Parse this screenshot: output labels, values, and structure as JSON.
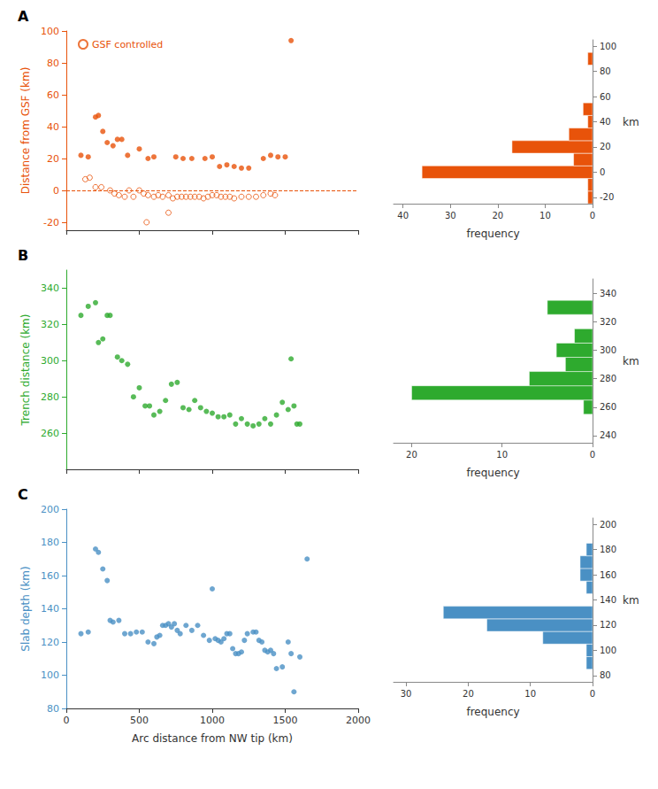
{
  "chart_data": [
    {
      "type": "scatter",
      "title": "A",
      "color": "#E8530A",
      "series": [
        {
          "color": "#E8530A",
          "marker": "circle",
          "x": [
            100,
            150,
            200,
            220,
            250,
            280,
            320,
            350,
            380,
            420,
            500,
            560,
            600,
            750,
            800,
            860,
            950,
            1000,
            1050,
            1100,
            1150,
            1200,
            1250,
            1350,
            1400,
            1450,
            1500,
            1540
          ],
          "values": [
            22,
            21,
            46,
            47,
            37,
            30,
            28,
            32,
            32,
            22,
            26,
            20,
            21,
            21,
            20,
            20,
            20,
            21,
            15,
            16,
            15,
            14,
            14,
            20,
            22,
            21,
            21,
            94
          ]
        },
        {
          "name": "GSF controlled",
          "color": "#E8530A",
          "marker": "hollow",
          "x": [
            130,
            160,
            200,
            240,
            300,
            330,
            360,
            400,
            430,
            460,
            500,
            530,
            560,
            600,
            630,
            660,
            700,
            730,
            760,
            790,
            820,
            850,
            880,
            910,
            940,
            970,
            1000,
            1030,
            1060,
            1090,
            1120,
            1150,
            1200,
            1250,
            1300,
            1350,
            1400,
            1430,
            550,
            700
          ],
          "values": [
            7,
            8,
            2,
            2,
            0,
            -2,
            -3,
            -4,
            0,
            -4,
            0,
            -2,
            -3,
            -4,
            -3,
            -4,
            -3,
            -5,
            -4,
            -4,
            -4,
            -4,
            -4,
            -4,
            -5,
            -4,
            -3,
            -3,
            -4,
            -4,
            -4,
            -5,
            -4,
            -4,
            -4,
            -3,
            -2,
            -3,
            -20,
            -14
          ]
        }
      ],
      "hlines": [
        {
          "value": 0,
          "color": "#E8530A",
          "line_style": "dashed"
        }
      ],
      "ylabel": "Distance from GSF (km)",
      "xlim": [
        0,
        2000
      ],
      "xticks": [
        0,
        500,
        1000,
        1500,
        2000
      ],
      "ylim": [
        -25,
        100
      ],
      "yticks": [
        -20,
        0,
        20,
        40,
        60,
        80,
        100
      ],
      "tick_labels": "y",
      "legend": "upper left",
      "grid": false
    },
    {
      "type": "histogram",
      "orientation": "horizontal",
      "color": "#E8530A",
      "bins": [
        -25,
        -15,
        -5,
        5,
        15,
        25,
        35,
        45,
        55,
        65,
        75,
        85,
        95,
        105
      ],
      "values": [
        1,
        1,
        36,
        4,
        17,
        5,
        1,
        2,
        0,
        0,
        0,
        1,
        0
      ],
      "xlabel": "frequency",
      "ylabel": "km",
      "xlim": [
        42,
        0
      ],
      "xticks": [
        40,
        30,
        20,
        10,
        0
      ],
      "ylim": [
        -25,
        105
      ],
      "yticks": [
        -20,
        0,
        20,
        40,
        60,
        80,
        100
      ],
      "grid": false
    },
    {
      "type": "scatter",
      "title": "B",
      "color": "#2EAA2E",
      "series": [
        {
          "color": "#2EAA2E",
          "marker": "circle",
          "x": [
            100,
            150,
            200,
            220,
            250,
            280,
            300,
            350,
            380,
            420,
            460,
            500,
            540,
            570,
            600,
            640,
            680,
            720,
            760,
            800,
            840,
            880,
            920,
            960,
            1000,
            1040,
            1080,
            1120,
            1160,
            1200,
            1240,
            1280,
            1320,
            1360,
            1400,
            1440,
            1480,
            1520,
            1540,
            1560,
            1580,
            1600
          ],
          "values": [
            325,
            330,
            332,
            310,
            312,
            325,
            325,
            302,
            300,
            298,
            280,
            285,
            275,
            275,
            270,
            272,
            278,
            287,
            288,
            274,
            273,
            278,
            274,
            272,
            271,
            269,
            269,
            270,
            265,
            268,
            265,
            264,
            265,
            268,
            265,
            270,
            277,
            273,
            301,
            275,
            265,
            265
          ]
        }
      ],
      "ylabel": "Trench distance (km)",
      "xlim": [
        0,
        2000
      ],
      "xticks": [
        0,
        500,
        1000,
        1500,
        2000
      ],
      "ylim": [
        240,
        350
      ],
      "yticks": [
        260,
        280,
        300,
        320,
        340
      ],
      "tick_labels": "y",
      "grid": false
    },
    {
      "type": "histogram",
      "orientation": "horizontal",
      "color": "#2EAA2E",
      "bins": [
        235,
        245,
        255,
        265,
        275,
        285,
        295,
        305,
        315,
        325,
        335,
        345,
        355
      ],
      "values": [
        0,
        0,
        1,
        20,
        7,
        3,
        4,
        2,
        0,
        5,
        0,
        0
      ],
      "xlabel": "frequency",
      "ylabel": "km",
      "xlim": [
        22,
        0
      ],
      "xticks": [
        20,
        10,
        0
      ],
      "ylim": [
        235,
        350
      ],
      "yticks": [
        240,
        260,
        280,
        300,
        320,
        340
      ],
      "grid": false
    },
    {
      "type": "scatter",
      "title": "C",
      "color": "#4A90C4",
      "series": [
        {
          "color": "#4A90C4",
          "marker": "circle",
          "x": [
            100,
            150,
            200,
            220,
            250,
            280,
            300,
            320,
            360,
            400,
            440,
            480,
            520,
            560,
            600,
            620,
            640,
            660,
            680,
            700,
            720,
            740,
            760,
            780,
            820,
            860,
            900,
            940,
            980,
            1000,
            1020,
            1040,
            1060,
            1080,
            1100,
            1120,
            1140,
            1160,
            1180,
            1200,
            1220,
            1240,
            1280,
            1300,
            1320,
            1340,
            1360,
            1380,
            1400,
            1420,
            1440,
            1480,
            1520,
            1540,
            1560,
            1600,
            1650
          ],
          "values": [
            125,
            126,
            176,
            174,
            164,
            157,
            133,
            132,
            133,
            125,
            125,
            126,
            126,
            120,
            119,
            123,
            124,
            130,
            130,
            131,
            129,
            131,
            127,
            125,
            130,
            127,
            130,
            124,
            121,
            152,
            122,
            121,
            120,
            122,
            125,
            125,
            116,
            113,
            113,
            114,
            121,
            125,
            126,
            126,
            121,
            120,
            115,
            114,
            115,
            113,
            104,
            105,
            120,
            113,
            90,
            111,
            170
          ]
        }
      ],
      "ylabel": "Slab depth (km)",
      "xlabel": "Arc distance from NW tip (km)",
      "xlim": [
        0,
        2000
      ],
      "xticks": [
        0,
        500,
        1000,
        1500,
        2000
      ],
      "ylim": [
        80,
        200
      ],
      "yticks": [
        80,
        100,
        120,
        140,
        160,
        180,
        200
      ],
      "grid": false
    },
    {
      "type": "histogram",
      "orientation": "horizontal",
      "color": "#4A90C4",
      "bins": [
        75,
        85,
        95,
        105,
        115,
        125,
        135,
        145,
        155,
        165,
        175,
        185,
        195,
        205
      ],
      "values": [
        0,
        1,
        1,
        8,
        17,
        24,
        0,
        1,
        2,
        2,
        1,
        0,
        0
      ],
      "xlabel": "frequency",
      "ylabel": "km",
      "xlim": [
        32,
        0
      ],
      "xticks": [
        30,
        20,
        10,
        0
      ],
      "ylim": [
        75,
        205
      ],
      "yticks": [
        80,
        100,
        120,
        140,
        160,
        180,
        200
      ],
      "grid": false
    }
  ]
}
